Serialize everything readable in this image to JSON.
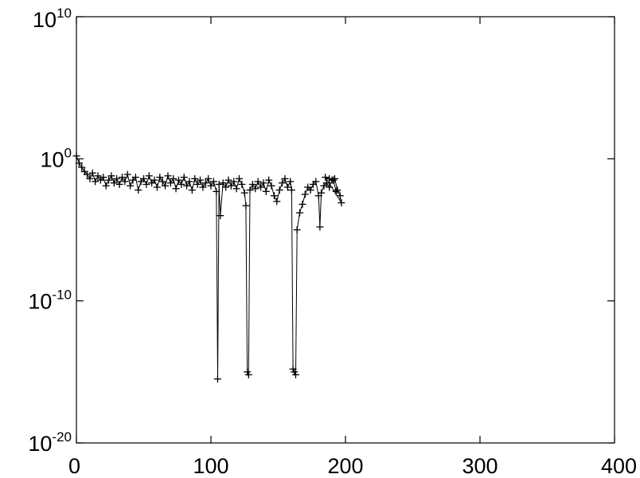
{
  "chart_data": {
    "type": "line",
    "title": "",
    "xlabel": "",
    "ylabel": "",
    "xlim": [
      0,
      400
    ],
    "ylim_log10": [
      -20,
      10
    ],
    "y_scale": "log",
    "grid": false,
    "legend": "none",
    "marker": "plus",
    "x_ticks": [
      {
        "value": 0,
        "label": "0"
      },
      {
        "value": 100,
        "label": "100"
      },
      {
        "value": 200,
        "label": "200"
      },
      {
        "value": 300,
        "label": "300"
      },
      {
        "value": 400,
        "label": "400"
      }
    ],
    "y_ticks": [
      {
        "exp": 10,
        "base": "10",
        "power": "10"
      },
      {
        "exp": 0,
        "base": "10",
        "power": "0"
      },
      {
        "exp": -10,
        "base": "10",
        "power": "-10"
      },
      {
        "exp": -20,
        "base": "10",
        "power": "-20"
      }
    ],
    "series": [
      {
        "color": "#000000",
        "points_log10": [
          [
            0,
            0.2
          ],
          [
            2,
            -0.3
          ],
          [
            4,
            -0.6
          ],
          [
            6,
            -0.9
          ],
          [
            8,
            -1.1
          ],
          [
            10,
            -1.4
          ],
          [
            12,
            -1.0
          ],
          [
            14,
            -1.6
          ],
          [
            16,
            -1.2
          ],
          [
            18,
            -1.5
          ],
          [
            20,
            -1.3
          ],
          [
            22,
            -1.9
          ],
          [
            24,
            -1.5
          ],
          [
            26,
            -1.2
          ],
          [
            28,
            -1.7
          ],
          [
            30,
            -1.4
          ],
          [
            32,
            -1.8
          ],
          [
            34,
            -1.3
          ],
          [
            36,
            -1.6
          ],
          [
            38,
            -1.1
          ],
          [
            40,
            -1.9
          ],
          [
            42,
            -1.5
          ],
          [
            44,
            -1.3
          ],
          [
            46,
            -2.2
          ],
          [
            48,
            -1.6
          ],
          [
            50,
            -1.4
          ],
          [
            52,
            -1.8
          ],
          [
            54,
            -1.2
          ],
          [
            56,
            -1.7
          ],
          [
            58,
            -1.5
          ],
          [
            60,
            -2.0
          ],
          [
            62,
            -1.3
          ],
          [
            64,
            -1.6
          ],
          [
            66,
            -1.9
          ],
          [
            68,
            -1.2
          ],
          [
            70,
            -1.7
          ],
          [
            72,
            -1.4
          ],
          [
            74,
            -2.1
          ],
          [
            76,
            -1.5
          ],
          [
            78,
            -1.8
          ],
          [
            80,
            -1.3
          ],
          [
            82,
            -1.9
          ],
          [
            84,
            -1.6
          ],
          [
            86,
            -2.2
          ],
          [
            88,
            -1.4
          ],
          [
            90,
            -1.8
          ],
          [
            92,
            -1.5
          ],
          [
            94,
            -2.0
          ],
          [
            96,
            -1.7
          ],
          [
            98,
            -1.4
          ],
          [
            100,
            -1.9
          ],
          [
            102,
            -1.6
          ],
          [
            104,
            -2.3
          ],
          [
            105,
            -15.5
          ],
          [
            106,
            -1.8
          ],
          [
            107,
            -4.0
          ],
          [
            109,
            -1.7
          ],
          [
            111,
            -2.0
          ],
          [
            113,
            -1.5
          ],
          [
            115,
            -1.9
          ],
          [
            117,
            -1.6
          ],
          [
            119,
            -2.1
          ],
          [
            121,
            -1.4
          ],
          [
            123,
            -1.8
          ],
          [
            125,
            -2.4
          ],
          [
            126,
            -3.3
          ],
          [
            127,
            -15.0
          ],
          [
            128,
            -15.2
          ],
          [
            129,
            -2.2
          ],
          [
            131,
            -1.8
          ],
          [
            133,
            -2.1
          ],
          [
            135,
            -1.6
          ],
          [
            137,
            -2.0
          ],
          [
            139,
            -1.7
          ],
          [
            141,
            -2.3
          ],
          [
            143,
            -1.5
          ],
          [
            145,
            -1.9
          ],
          [
            147,
            -2.6
          ],
          [
            149,
            -3.0
          ],
          [
            151,
            -2.2
          ],
          [
            153,
            -1.7
          ],
          [
            155,
            -1.4
          ],
          [
            157,
            -2.0
          ],
          [
            159,
            -1.6
          ],
          [
            160,
            -2.2
          ],
          [
            161,
            -14.8
          ],
          [
            162,
            -15.0
          ],
          [
            163,
            -15.2
          ],
          [
            164,
            -5.0
          ],
          [
            166,
            -3.8
          ],
          [
            168,
            -3.2
          ],
          [
            170,
            -2.5
          ],
          [
            172,
            -2.0
          ],
          [
            174,
            -2.2
          ],
          [
            176,
            -1.8
          ],
          [
            178,
            -1.6
          ],
          [
            180,
            -2.6
          ],
          [
            181,
            -4.8
          ],
          [
            182,
            -2.4
          ],
          [
            184,
            -1.9
          ],
          [
            186,
            -1.7
          ],
          [
            188,
            -2.0
          ],
          [
            190,
            -1.5
          ],
          [
            192,
            -1.4
          ],
          [
            194,
            -2.2
          ],
          [
            196,
            -2.6
          ],
          [
            197,
            -3.1
          ],
          [
            185,
            -1.3
          ],
          [
            188,
            -1.4
          ],
          [
            191,
            -1.5
          ],
          [
            193,
            -2.3
          ]
        ]
      }
    ]
  }
}
